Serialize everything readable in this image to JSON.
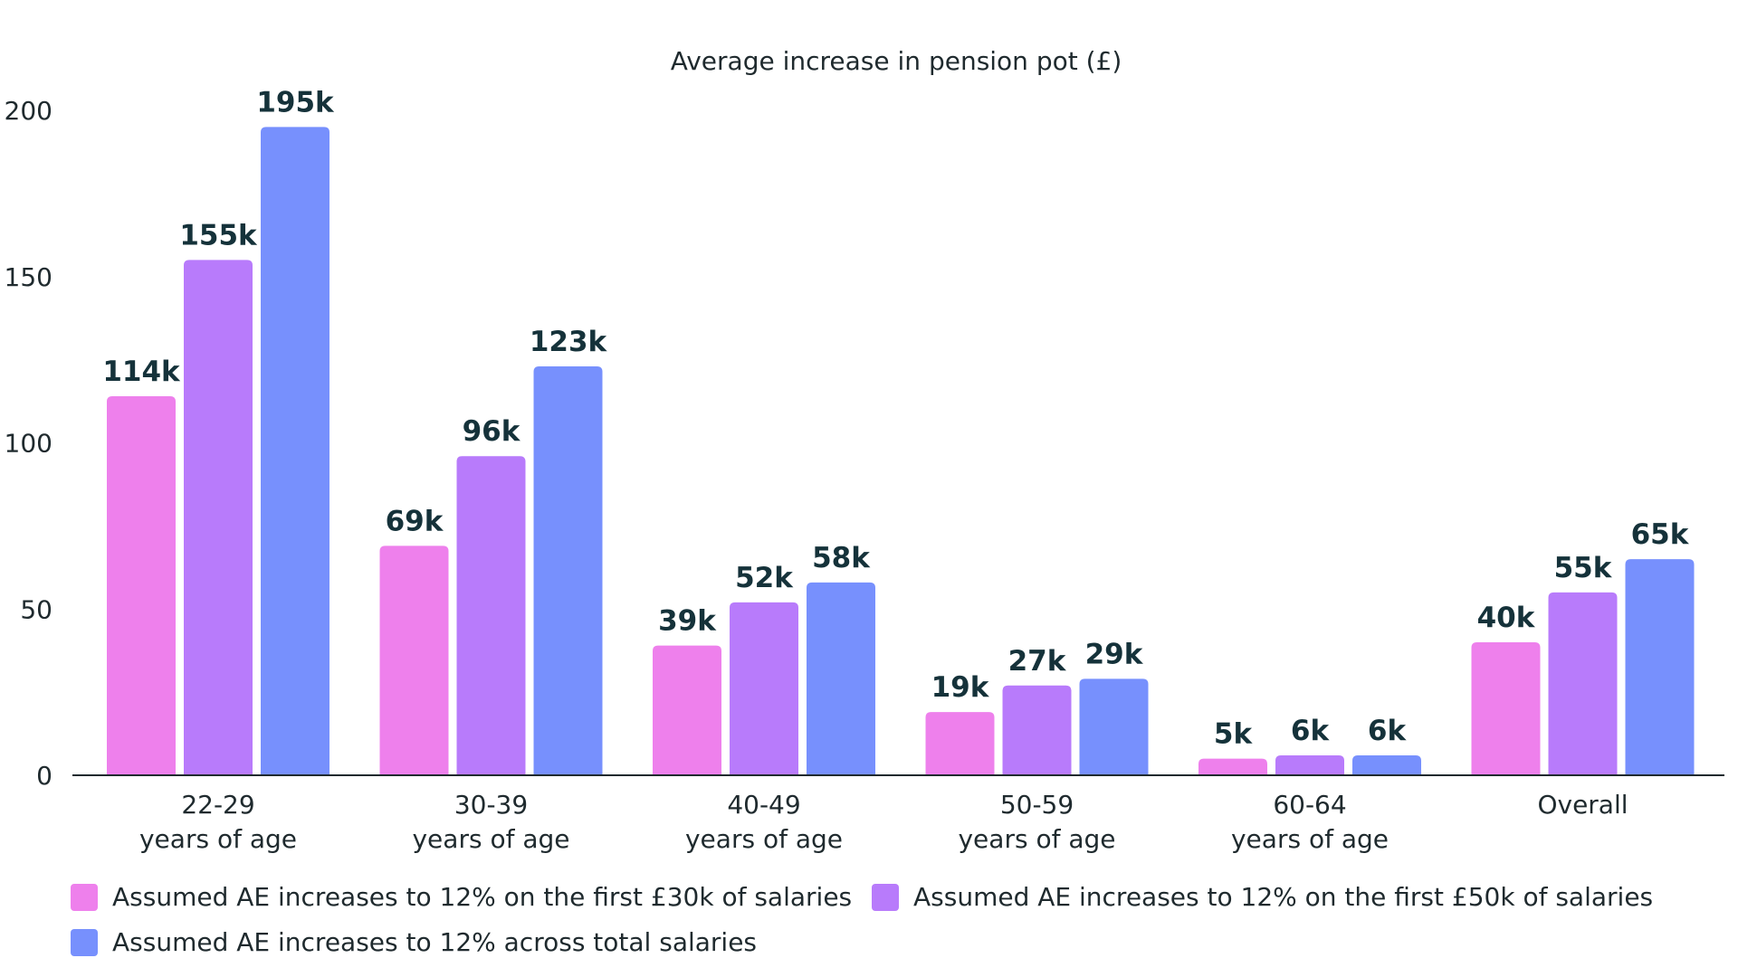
{
  "chart_data": {
    "type": "bar",
    "title": "Average increase in pension pot (£)",
    "categories": [
      [
        "22-29",
        "years of age"
      ],
      [
        "30-39",
        "years of age"
      ],
      [
        "40-49",
        "years of age"
      ],
      [
        "50-59",
        "years of age"
      ],
      [
        "60-64",
        "years of age"
      ],
      [
        "Overall"
      ]
    ],
    "series": [
      {
        "name": "Assumed AE increases to 12% on the first £30k of salaries",
        "color": "#ee80ec",
        "values": [
          114,
          69,
          39,
          19,
          5,
          40
        ],
        "labels": [
          "114k",
          "69k",
          "39k",
          "19k",
          "5k",
          "40k"
        ]
      },
      {
        "name": "Assumed AE increases to 12% on the first £50k of salaries",
        "color": "#b87bfb",
        "values": [
          155,
          96,
          52,
          27,
          6,
          55
        ],
        "labels": [
          "155k",
          "96k",
          "52k",
          "27k",
          "6k",
          "55k"
        ]
      },
      {
        "name": "Assumed AE increases to 12% across total salaries",
        "color": "#7790fd",
        "values": [
          195,
          123,
          58,
          29,
          6,
          65
        ],
        "labels": [
          "195k",
          "123k",
          "58k",
          "29k",
          "6k",
          "65k"
        ]
      }
    ],
    "ylim": [
      0,
      200
    ],
    "yticks": [
      0,
      50,
      100,
      150,
      200
    ],
    "grid": false,
    "legend": "bottom-left"
  }
}
